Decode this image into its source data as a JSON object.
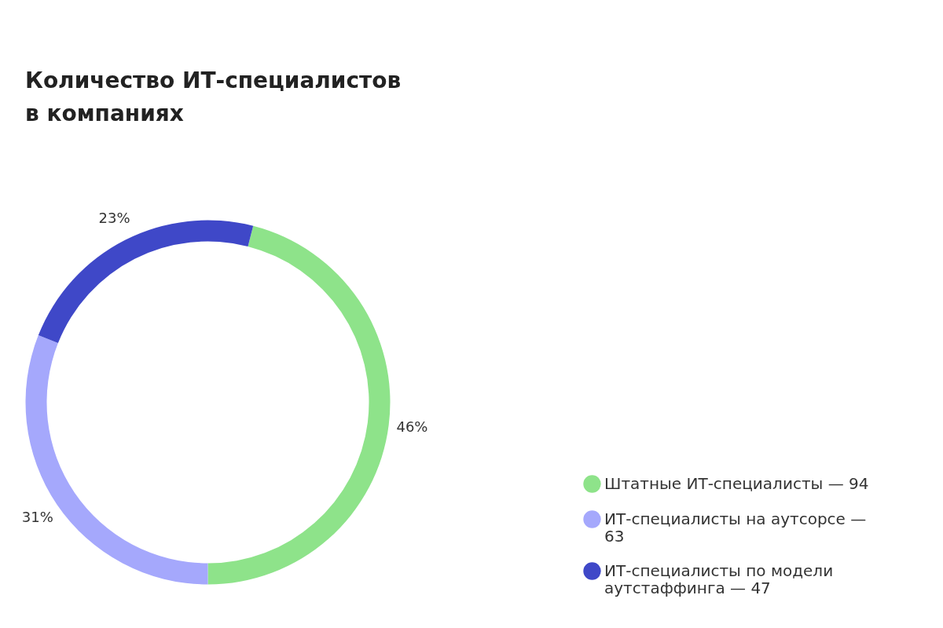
{
  "chart_data": {
    "type": "donut",
    "title": "Количество ИТ-специалистов в компаниях",
    "categories": [
      "Штатные ИТ-специалисты — 94",
      "ИТ-специалисты на аутсорсе — 63",
      "ИТ-специалисты по модели аутстаффинга — 47"
    ],
    "values": [
      46,
      31,
      23
    ],
    "colors": [
      "#8ee38a",
      "#a5a8fc",
      "#3f48c8"
    ],
    "value_labels": [
      "46%",
      "31%",
      "23%"
    ],
    "legend": "right"
  }
}
